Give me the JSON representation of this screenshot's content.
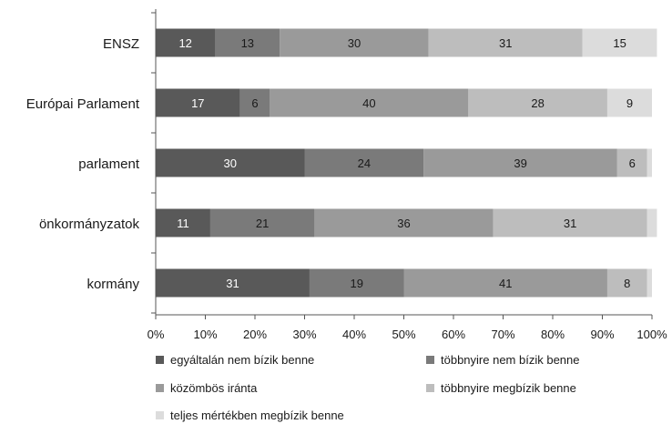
{
  "chart_data": {
    "type": "bar",
    "orientation": "horizontal",
    "stacked": true,
    "categories": [
      "ENSZ",
      "Európai Parlament",
      "parlament",
      "önkormányzatok",
      "kormány"
    ],
    "series": [
      {
        "name": "egyáltalán nem bízik benne",
        "values": [
          12,
          17,
          30,
          11,
          31
        ],
        "color": "#595959"
      },
      {
        "name": "többnyire nem bízik benne",
        "values": [
          13,
          6,
          24,
          21,
          19
        ],
        "color": "#7a7a7a"
      },
      {
        "name": "közömbös iránta",
        "values": [
          30,
          40,
          39,
          36,
          41
        ],
        "color": "#9a9a9a"
      },
      {
        "name": "többnyire megbízik benne",
        "values": [
          31,
          28,
          6,
          31,
          8
        ],
        "color": "#bdbdbd"
      },
      {
        "name": "teljes mértékben megbízik benne",
        "values": [
          15,
          9,
          1,
          2,
          1
        ],
        "color": "#dcdcdc"
      }
    ],
    "data_labels": [
      [
        "12",
        "13",
        "30",
        "31",
        "15"
      ],
      [
        "17",
        "6",
        "40",
        "28",
        "9"
      ],
      [
        "30",
        "24",
        "39",
        "6",
        ""
      ],
      [
        "11",
        "21",
        "36",
        "31",
        ""
      ],
      [
        "31",
        "19",
        "41",
        "8",
        ""
      ]
    ],
    "xlim": [
      0,
      100
    ],
    "x_ticks": [
      "0%",
      "10%",
      "20%",
      "30%",
      "40%",
      "50%",
      "60%",
      "70%",
      "80%",
      "90%",
      "100%"
    ],
    "grid": false,
    "legend_position": "bottom",
    "title": "",
    "xlabel": "",
    "ylabel": ""
  }
}
